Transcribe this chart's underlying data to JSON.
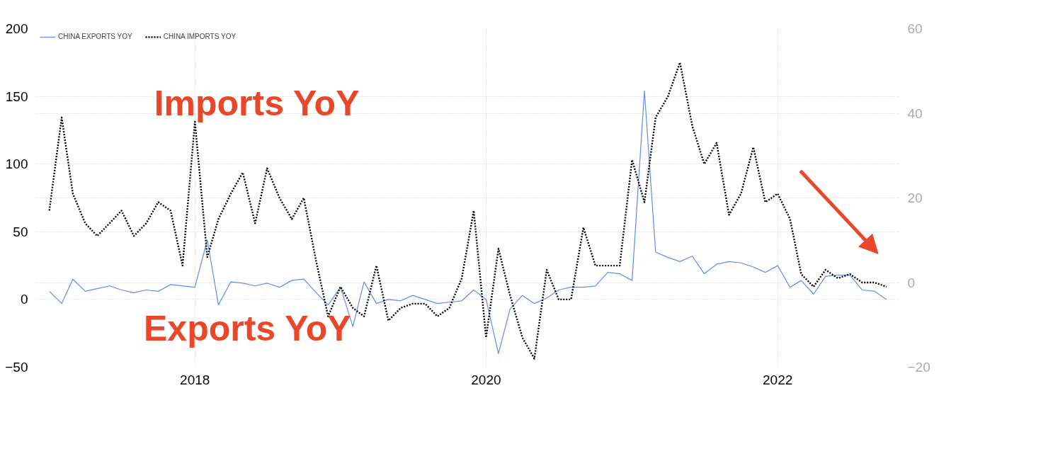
{
  "chart_data": {
    "type": "line",
    "x": [
      "2017-01",
      "2017-02",
      "2017-03",
      "2017-04",
      "2017-05",
      "2017-06",
      "2017-07",
      "2017-08",
      "2017-09",
      "2017-10",
      "2017-11",
      "2017-12",
      "2018-01",
      "2018-02",
      "2018-03",
      "2018-04",
      "2018-05",
      "2018-06",
      "2018-07",
      "2018-08",
      "2018-09",
      "2018-10",
      "2018-11",
      "2018-12",
      "2019-01",
      "2019-02",
      "2019-03",
      "2019-04",
      "2019-05",
      "2019-06",
      "2019-07",
      "2019-08",
      "2019-09",
      "2019-10",
      "2019-11",
      "2019-12",
      "2020-01",
      "2020-02",
      "2020-03",
      "2020-04",
      "2020-05",
      "2020-06",
      "2020-07",
      "2020-08",
      "2020-09",
      "2020-10",
      "2020-11",
      "2020-12",
      "2021-01",
      "2021-02",
      "2021-03",
      "2021-04",
      "2021-05",
      "2021-06",
      "2021-07",
      "2021-08",
      "2021-09",
      "2021-10",
      "2021-11",
      "2021-12",
      "2022-01",
      "2022-02",
      "2022-03",
      "2022-04",
      "2022-05",
      "2022-06",
      "2022-07",
      "2022-08",
      "2022-09",
      "2022-10"
    ],
    "series": [
      {
        "name": "CHINA EXPORTS YOY",
        "color": "#5b8def",
        "line_style": "solid",
        "values": [
          6,
          -3,
          15,
          6,
          8,
          10,
          7,
          5,
          7,
          6,
          11,
          10,
          9,
          44,
          -4,
          13,
          12,
          10,
          12,
          9,
          14,
          15,
          5,
          -4,
          9,
          -20,
          13,
          -3,
          0,
          -1,
          3,
          0,
          -3,
          -2,
          -1,
          7,
          0,
          -40,
          -7,
          3,
          -3,
          1,
          7,
          9,
          9,
          10,
          20,
          19,
          14,
          154,
          35,
          31,
          28,
          32,
          19,
          26,
          28,
          27,
          24,
          20,
          25,
          9,
          14,
          4,
          17,
          18,
          18,
          7,
          6,
          0
        ]
      },
      {
        "name": "CHINA IMPORTS YOY",
        "color": "#000000",
        "line_style": "dotted",
        "axis": "y2",
        "values": [
          17,
          39,
          21,
          14,
          11,
          14,
          17,
          11,
          14,
          19,
          17,
          4,
          38,
          6,
          15,
          21,
          26,
          14,
          27,
          20,
          15,
          20,
          5,
          -8,
          -1,
          -6,
          -8,
          4,
          -9,
          -6,
          -5,
          -5,
          -8,
          -6,
          1,
          17,
          -13,
          8,
          -3,
          -13,
          -18,
          3,
          -4,
          -4,
          13,
          4,
          4,
          4,
          29,
          19,
          39,
          44,
          52,
          37,
          28,
          33,
          16,
          21,
          32,
          19,
          21,
          15,
          2,
          -1,
          3,
          1,
          2,
          0,
          0,
          -1
        ]
      }
    ],
    "xlim": [
      "2016-11-28",
      "2022-11-03"
    ],
    "xticks": [
      "2018",
      "2020",
      "2022"
    ],
    "ylim": [
      -50,
      200
    ],
    "yticks": [
      -50,
      0,
      50,
      100,
      150,
      200
    ],
    "y2lim": [
      -20,
      60
    ],
    "y2ticks": [
      -20,
      0,
      20,
      40,
      60
    ],
    "grid": true,
    "legend": "top left",
    "marker": "none",
    "annotations": [
      "Imports YoY",
      "Exports YoY"
    ]
  }
}
